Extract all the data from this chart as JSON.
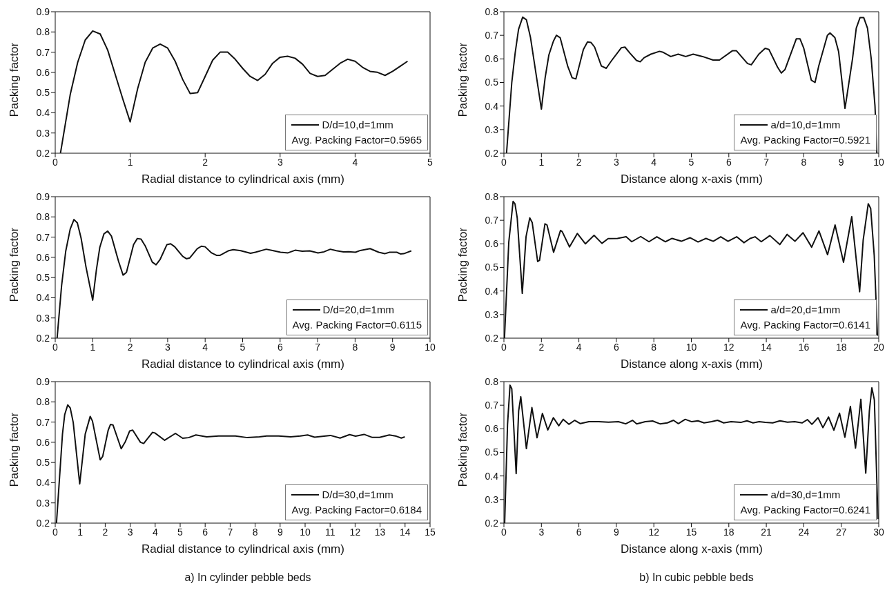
{
  "chart_data": [
    {
      "type": "line",
      "xlabel": "Radial distance to cylindrical axis (mm)",
      "ylabel": "Packing factor",
      "xlim": [
        0,
        5
      ],
      "xticks": [
        0,
        1,
        2,
        3,
        4,
        5
      ],
      "ylim": [
        0.2,
        0.9
      ],
      "yticks": [
        0.2,
        0.3,
        0.4,
        0.5,
        0.6,
        0.7,
        0.8,
        0.9
      ],
      "legend": "bottom right",
      "annotations": [
        "Avg. Packing Factor=0.5965"
      ],
      "x": [
        0.07,
        0.2,
        0.3,
        0.4,
        0.5,
        0.6,
        0.7,
        0.8,
        0.9,
        1.0,
        1.1,
        1.2,
        1.3,
        1.4,
        1.5,
        1.6,
        1.7,
        1.8,
        1.9,
        2.0,
        2.1,
        2.2,
        2.3,
        2.4,
        2.5,
        2.6,
        2.7,
        2.8,
        2.9,
        3.0,
        3.1,
        3.2,
        3.3,
        3.4,
        3.5,
        3.6,
        3.7,
        3.8,
        3.9,
        4.0,
        4.1,
        4.2,
        4.3,
        4.4,
        4.5,
        4.6,
        4.7
      ],
      "series": [
        {
          "name": "D/d=10,d=1mm",
          "color": "#111111",
          "values": [
            0.2,
            0.49,
            0.65,
            0.76,
            0.805,
            0.79,
            0.71,
            0.59,
            0.47,
            0.355,
            0.52,
            0.65,
            0.72,
            0.74,
            0.72,
            0.655,
            0.565,
            0.495,
            0.5,
            0.58,
            0.66,
            0.7,
            0.7,
            0.665,
            0.62,
            0.58,
            0.56,
            0.59,
            0.645,
            0.675,
            0.68,
            0.67,
            0.64,
            0.595,
            0.58,
            0.585,
            0.615,
            0.645,
            0.665,
            0.655,
            0.625,
            0.605,
            0.6,
            0.585,
            0.605,
            0.63,
            0.655
          ]
        }
      ]
    },
    {
      "type": "line",
      "xlabel": "Distance along x-axis (mm)",
      "ylabel": "Packing factor",
      "xlim": [
        0,
        10
      ],
      "xticks": [
        0,
        1,
        2,
        3,
        4,
        5,
        6,
        7,
        8,
        9,
        10
      ],
      "ylim": [
        0.2,
        0.8
      ],
      "yticks": [
        0.2,
        0.3,
        0.4,
        0.5,
        0.6,
        0.7,
        0.8
      ],
      "legend": "bottom right",
      "annotations": [
        "Avg. Packing Factor=0.5921"
      ],
      "x": [
        0.07,
        0.21,
        0.3,
        0.39,
        0.5,
        0.6,
        0.71,
        1.0,
        1.1,
        1.2,
        1.32,
        1.4,
        1.5,
        1.7,
        1.82,
        1.92,
        2.12,
        2.23,
        2.32,
        2.42,
        2.6,
        2.73,
        2.86,
        3.13,
        3.23,
        3.36,
        3.54,
        3.64,
        3.74,
        3.92,
        4.15,
        4.25,
        4.45,
        4.65,
        4.85,
        5.05,
        5.3,
        5.58,
        5.75,
        6.1,
        6.2,
        6.5,
        6.6,
        6.8,
        6.97,
        7.07,
        7.3,
        7.4,
        7.5,
        7.8,
        7.9,
        8.0,
        8.2,
        8.3,
        8.4,
        8.63,
        8.7,
        8.83,
        8.93,
        9.1,
        9.3,
        9.4,
        9.5,
        9.6,
        9.7,
        9.8,
        9.9,
        9.95
      ],
      "series": [
        {
          "name": "a/d=10,d=1mm",
          "color": "#111111",
          "values": [
            0.2,
            0.5,
            0.625,
            0.725,
            0.777,
            0.766,
            0.69,
            0.387,
            0.52,
            0.617,
            0.675,
            0.7,
            0.69,
            0.57,
            0.52,
            0.515,
            0.64,
            0.672,
            0.67,
            0.65,
            0.57,
            0.56,
            0.59,
            0.647,
            0.65,
            0.625,
            0.593,
            0.588,
            0.605,
            0.62,
            0.632,
            0.628,
            0.61,
            0.62,
            0.61,
            0.62,
            0.61,
            0.595,
            0.595,
            0.635,
            0.635,
            0.58,
            0.575,
            0.62,
            0.645,
            0.64,
            0.565,
            0.54,
            0.555,
            0.685,
            0.685,
            0.645,
            0.51,
            0.5,
            0.57,
            0.7,
            0.71,
            0.69,
            0.63,
            0.39,
            0.6,
            0.73,
            0.775,
            0.775,
            0.73,
            0.6,
            0.4,
            0.2
          ]
        }
      ]
    },
    {
      "type": "line",
      "xlabel": "Radial distance to cylindrical axis (mm)",
      "ylabel": "Packing factor",
      "xlim": [
        0,
        10
      ],
      "xticks": [
        0,
        1,
        2,
        3,
        4,
        5,
        6,
        7,
        8,
        9,
        10
      ],
      "ylim": [
        0.2,
        0.9
      ],
      "yticks": [
        0.2,
        0.3,
        0.4,
        0.5,
        0.6,
        0.7,
        0.8,
        0.9
      ],
      "legend": "bottom right",
      "annotations": [
        "Avg. Packing Factor=0.6115"
      ],
      "x": [
        0.05,
        0.17,
        0.28,
        0.4,
        0.5,
        0.59,
        0.69,
        0.82,
        1.0,
        1.1,
        1.19,
        1.3,
        1.4,
        1.5,
        1.69,
        1.81,
        1.9,
        2.09,
        2.19,
        2.29,
        2.4,
        2.59,
        2.69,
        2.8,
        2.98,
        3.08,
        3.19,
        3.4,
        3.5,
        3.59,
        3.79,
        3.9,
        4.0,
        4.17,
        4.3,
        4.4,
        4.63,
        4.75,
        4.95,
        5.21,
        5.34,
        5.63,
        5.82,
        6.01,
        6.21,
        6.4,
        6.59,
        6.79,
        7.01,
        7.17,
        7.34,
        7.5,
        7.69,
        7.82,
        8.01,
        8.14,
        8.4,
        8.63,
        8.79,
        8.92,
        9.11,
        9.21,
        9.3,
        9.5
      ],
      "series": [
        {
          "name": "D/d=20,d=1mm",
          "color": "#111111",
          "values": [
            0.2,
            0.46,
            0.63,
            0.74,
            0.787,
            0.77,
            0.695,
            0.553,
            0.388,
            0.54,
            0.65,
            0.716,
            0.73,
            0.705,
            0.58,
            0.512,
            0.525,
            0.663,
            0.693,
            0.69,
            0.657,
            0.576,
            0.563,
            0.59,
            0.663,
            0.667,
            0.652,
            0.605,
            0.593,
            0.597,
            0.643,
            0.655,
            0.652,
            0.622,
            0.61,
            0.61,
            0.633,
            0.638,
            0.633,
            0.62,
            0.625,
            0.64,
            0.633,
            0.625,
            0.622,
            0.635,
            0.63,
            0.632,
            0.622,
            0.627,
            0.64,
            0.633,
            0.627,
            0.628,
            0.625,
            0.634,
            0.643,
            0.625,
            0.618,
            0.625,
            0.625,
            0.617,
            0.618,
            0.632
          ]
        }
      ]
    },
    {
      "type": "line",
      "xlabel": "Distance along x-axis (mm)",
      "ylabel": "Packing factor",
      "xlim": [
        0,
        20
      ],
      "xticks": [
        0,
        2,
        4,
        6,
        8,
        10,
        12,
        14,
        16,
        18,
        20
      ],
      "ylim": [
        0.2,
        0.8
      ],
      "yticks": [
        0.2,
        0.3,
        0.4,
        0.5,
        0.6,
        0.7,
        0.8
      ],
      "legend": "bottom right",
      "annotations": [
        "Avg. Packing Factor=0.6141"
      ],
      "x": [
        0.03,
        0.26,
        0.49,
        0.59,
        0.71,
        0.98,
        1.18,
        1.38,
        1.51,
        1.8,
        1.9,
        2.19,
        2.3,
        2.65,
        3.02,
        3.11,
        3.5,
        3.92,
        4.35,
        4.81,
        5.23,
        5.56,
        6.06,
        6.52,
        6.82,
        7.3,
        7.74,
        8.16,
        8.62,
        8.97,
        9.47,
        9.93,
        10.36,
        10.78,
        11.17,
        11.57,
        11.96,
        12.42,
        12.81,
        13.14,
        13.4,
        13.73,
        14.19,
        14.72,
        15.11,
        15.53,
        15.96,
        16.42,
        16.81,
        17.27,
        17.67,
        18.12,
        18.56,
        18.98,
        19.17,
        19.44,
        19.57,
        19.76,
        19.93
      ],
      "series": [
        {
          "name": "a/d=20,d=1mm",
          "color": "#111111",
          "values": [
            0.2,
            0.607,
            0.78,
            0.77,
            0.71,
            0.39,
            0.63,
            0.71,
            0.69,
            0.525,
            0.53,
            0.685,
            0.68,
            0.564,
            0.657,
            0.652,
            0.587,
            0.644,
            0.6,
            0.636,
            0.602,
            0.622,
            0.623,
            0.63,
            0.609,
            0.631,
            0.609,
            0.63,
            0.609,
            0.623,
            0.611,
            0.626,
            0.608,
            0.623,
            0.611,
            0.63,
            0.611,
            0.63,
            0.605,
            0.623,
            0.63,
            0.609,
            0.635,
            0.597,
            0.64,
            0.611,
            0.647,
            0.586,
            0.655,
            0.554,
            0.68,
            0.522,
            0.715,
            0.397,
            0.616,
            0.77,
            0.75,
            0.55,
            0.21
          ]
        }
      ]
    },
    {
      "type": "line",
      "xlabel": "Radial distance to cylindrical axis (mm)",
      "ylabel": "Packing factor",
      "xlim": [
        0,
        15
      ],
      "xticks": [
        0,
        1,
        2,
        3,
        4,
        5,
        6,
        7,
        8,
        9,
        10,
        11,
        12,
        13,
        14,
        15
      ],
      "ylim": [
        0.2,
        0.9
      ],
      "yticks": [
        0.2,
        0.3,
        0.4,
        0.5,
        0.6,
        0.7,
        0.8,
        0.9
      ],
      "legend": "bottom right",
      "annotations": [
        "Avg. Packing Factor=0.6184",
        "a) In cylinder pebble beds"
      ],
      "x": [
        0.05,
        0.29,
        0.38,
        0.5,
        0.6,
        0.72,
        0.98,
        1.2,
        1.4,
        1.49,
        1.8,
        1.9,
        2.12,
        2.21,
        2.31,
        2.64,
        2.81,
        2.98,
        3.1,
        3.41,
        3.54,
        3.89,
        3.99,
        4.38,
        4.81,
        5.1,
        5.34,
        5.63,
        6.06,
        6.54,
        7.21,
        7.69,
        8.17,
        8.46,
        8.94,
        9.42,
        9.81,
        10.1,
        10.38,
        11.01,
        11.4,
        11.78,
        12.02,
        12.36,
        12.69,
        12.98,
        13.37,
        13.65,
        13.85,
        13.99
      ],
      "series": [
        {
          "name": "D/d=30,d=1mm",
          "color": "#111111",
          "values": [
            0.2,
            0.64,
            0.737,
            0.785,
            0.77,
            0.698,
            0.394,
            0.64,
            0.728,
            0.705,
            0.513,
            0.53,
            0.66,
            0.688,
            0.686,
            0.568,
            0.604,
            0.656,
            0.66,
            0.6,
            0.594,
            0.649,
            0.646,
            0.61,
            0.644,
            0.62,
            0.623,
            0.636,
            0.627,
            0.631,
            0.631,
            0.623,
            0.627,
            0.631,
            0.631,
            0.627,
            0.631,
            0.636,
            0.625,
            0.634,
            0.621,
            0.638,
            0.63,
            0.639,
            0.624,
            0.624,
            0.636,
            0.63,
            0.621,
            0.627
          ]
        }
      ]
    },
    {
      "type": "line",
      "xlabel": "Distance along x-axis (mm)",
      "ylabel": "Packing factor",
      "xlim": [
        0,
        30
      ],
      "xticks": [
        0,
        3,
        6,
        9,
        12,
        15,
        18,
        21,
        24,
        27,
        30
      ],
      "ylim": [
        0.2,
        0.8
      ],
      "yticks": [
        0.2,
        0.3,
        0.4,
        0.5,
        0.6,
        0.7,
        0.8
      ],
      "legend": "bottom right",
      "annotations": [
        "Avg. Packing Factor=0.6241",
        "b) In cubic pebble beds"
      ],
      "x": [
        0.06,
        0.29,
        0.49,
        0.63,
        0.98,
        1.18,
        1.35,
        1.8,
        2.24,
        2.65,
        3.08,
        3.51,
        3.96,
        4.39,
        4.75,
        5.2,
        5.67,
        6.12,
        6.8,
        7.59,
        8.37,
        9.16,
        9.75,
        10.29,
        10.63,
        11.31,
        11.9,
        12.49,
        13.08,
        13.57,
        13.96,
        14.51,
        15.04,
        15.53,
        16.02,
        16.61,
        17.1,
        17.59,
        18.18,
        18.96,
        19.45,
        19.94,
        20.43,
        20.92,
        21.51,
        22.1,
        22.69,
        23.27,
        23.86,
        24.29,
        24.65,
        25.14,
        25.53,
        25.98,
        26.41,
        26.86,
        27.29,
        27.73,
        28.14,
        28.57,
        28.96,
        29.25,
        29.45,
        29.65,
        29.94
      ],
      "series": [
        {
          "name": "a/d=30,d=1mm",
          "color": "#111111",
          "values": [
            0.2,
            0.619,
            0.785,
            0.77,
            0.41,
            0.676,
            0.736,
            0.516,
            0.69,
            0.562,
            0.665,
            0.595,
            0.647,
            0.613,
            0.64,
            0.619,
            0.636,
            0.622,
            0.63,
            0.63,
            0.628,
            0.63,
            0.621,
            0.636,
            0.621,
            0.63,
            0.633,
            0.621,
            0.625,
            0.636,
            0.622,
            0.64,
            0.63,
            0.634,
            0.625,
            0.63,
            0.636,
            0.625,
            0.63,
            0.627,
            0.634,
            0.625,
            0.63,
            0.627,
            0.625,
            0.634,
            0.628,
            0.63,
            0.625,
            0.639,
            0.619,
            0.647,
            0.605,
            0.65,
            0.594,
            0.666,
            0.564,
            0.695,
            0.518,
            0.725,
            0.412,
            0.676,
            0.774,
            0.722,
            0.217
          ]
        }
      ]
    }
  ]
}
